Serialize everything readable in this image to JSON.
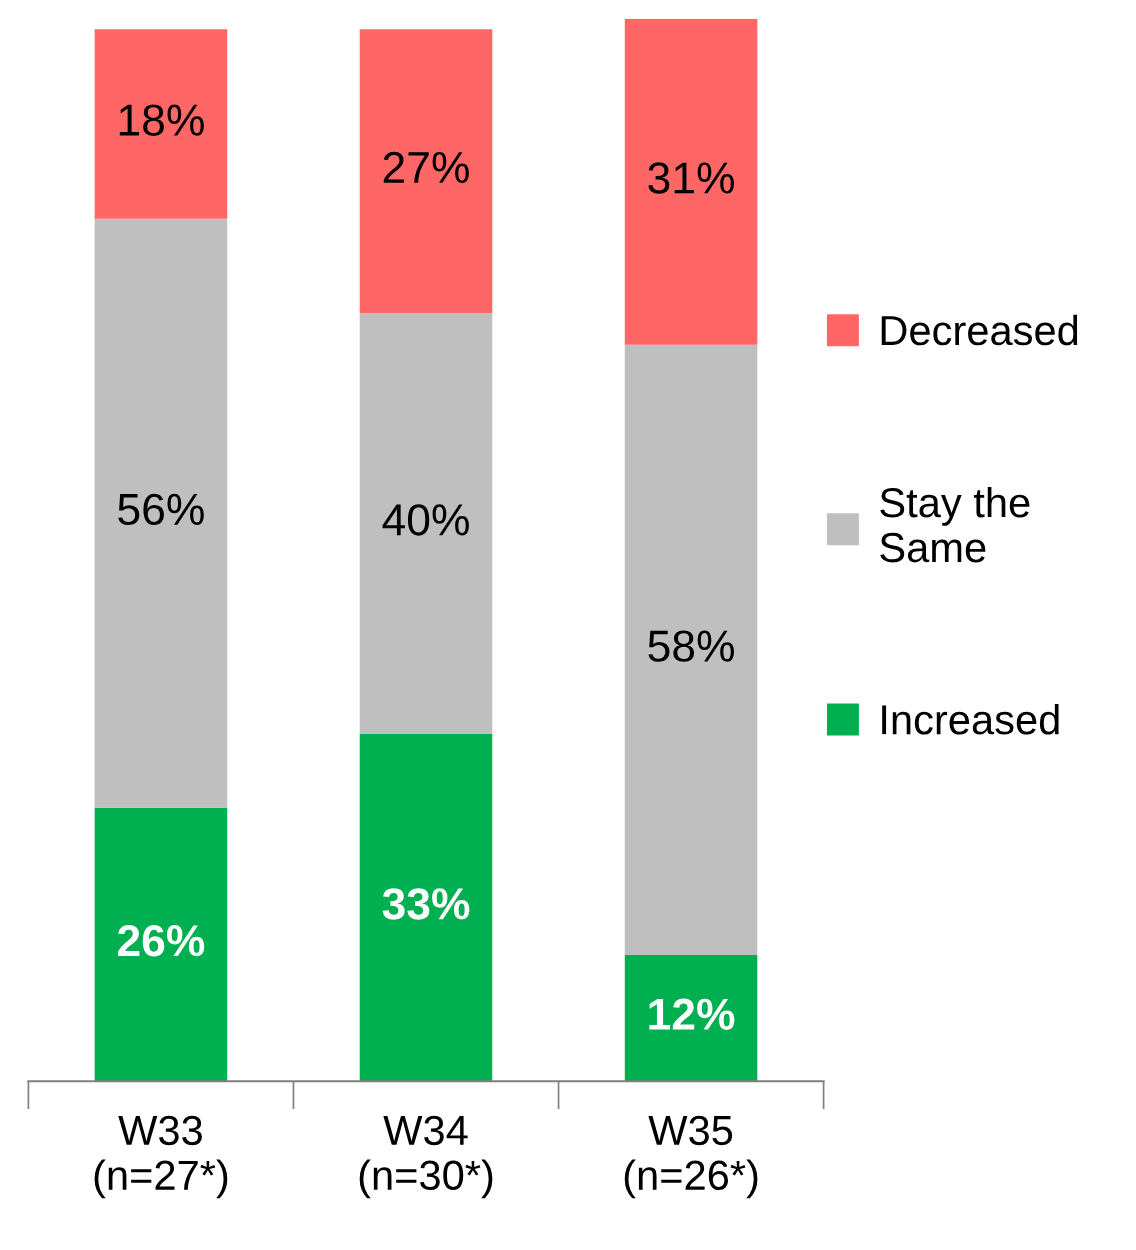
{
  "chart_data": {
    "type": "bar",
    "stacked": true,
    "categories": [
      "W33\n(n=27*)",
      "W34\n(n=30*)",
      "W35\n(n=26*)"
    ],
    "series": [
      {
        "name": "Increased",
        "color": "#00b050",
        "values": [
          26,
          33,
          12
        ],
        "value_labels": [
          "26%",
          "33%",
          "12%"
        ]
      },
      {
        "name": "Stay the Same",
        "color": "#bfbfbf",
        "values": [
          56,
          40,
          58
        ],
        "value_labels": [
          "56%",
          "40%",
          "58%"
        ]
      },
      {
        "name": "Decreased",
        "color": "#ff6666",
        "values": [
          18,
          27,
          31
        ],
        "value_labels": [
          "18%",
          "27%",
          "31%"
        ]
      }
    ],
    "legend": "right"
  }
}
